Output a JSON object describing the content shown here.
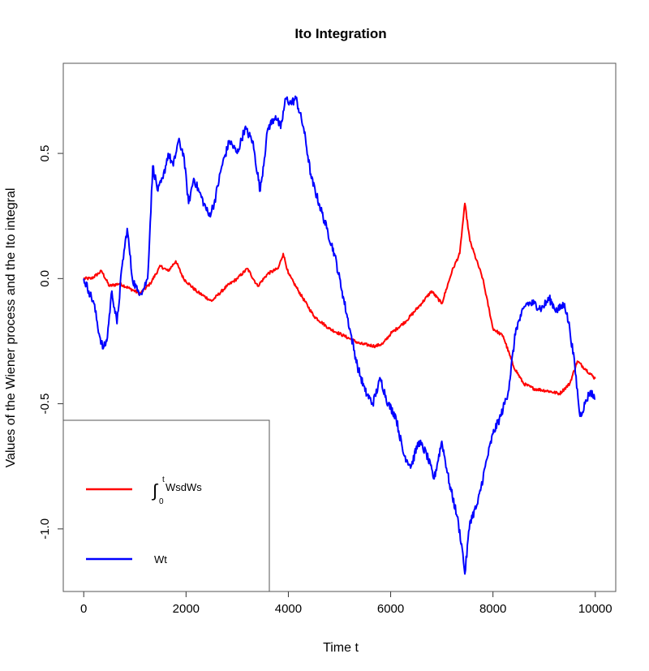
{
  "chart_data": {
    "type": "line",
    "title": "Ito Integration",
    "xlabel": "Time t",
    "ylabel": "Values of the Wiener process and the Ito integral",
    "xlim": [
      -400,
      10400
    ],
    "ylim": [
      -1.25,
      0.86
    ],
    "x_ticks": [
      0,
      2000,
      4000,
      6000,
      8000,
      10000
    ],
    "y_ticks": [
      -1.0,
      -0.5,
      0.0,
      0.5
    ],
    "x_tick_labels": [
      "0",
      "2000",
      "4000",
      "6000",
      "8000",
      "10000"
    ],
    "y_tick_labels": [
      "-1.0",
      "-0.5",
      "0.0",
      "0.5"
    ],
    "legend_position": "bottom-left",
    "series": [
      {
        "name": "∫₀ᵗ WsdWs",
        "color": "#ff0000",
        "x": [
          0,
          150,
          350,
          500,
          700,
          900,
          1100,
          1300,
          1500,
          1650,
          1800,
          1950,
          2200,
          2500,
          2800,
          3000,
          3200,
          3400,
          3600,
          3800,
          3900,
          4000,
          4200,
          4500,
          4800,
          5100,
          5400,
          5700,
          5850,
          6000,
          6300,
          6600,
          6800,
          7000,
          7200,
          7350,
          7450,
          7550,
          7800,
          8000,
          8200,
          8400,
          8600,
          8800,
          9100,
          9300,
          9500,
          9650,
          9800,
          10000
        ],
        "y": [
          0.0,
          0.0,
          0.03,
          -0.03,
          -0.02,
          -0.04,
          -0.06,
          -0.02,
          0.05,
          0.03,
          0.07,
          0.0,
          -0.05,
          -0.09,
          -0.03,
          0.0,
          0.04,
          -0.03,
          0.02,
          0.04,
          0.1,
          0.02,
          -0.05,
          -0.15,
          -0.2,
          -0.23,
          -0.26,
          -0.27,
          -0.26,
          -0.22,
          -0.17,
          -0.1,
          -0.05,
          -0.1,
          0.03,
          0.1,
          0.3,
          0.15,
          0.0,
          -0.2,
          -0.23,
          -0.35,
          -0.42,
          -0.44,
          -0.45,
          -0.46,
          -0.42,
          -0.33,
          -0.36,
          -0.4
        ]
      },
      {
        "name": "Wt",
        "color": "#0000ff",
        "x": [
          0,
          100,
          200,
          300,
          380,
          450,
          550,
          650,
          750,
          850,
          950,
          1050,
          1150,
          1250,
          1350,
          1450,
          1550,
          1650,
          1750,
          1850,
          1950,
          2050,
          2150,
          2250,
          2350,
          2450,
          2550,
          2700,
          2850,
          3000,
          3150,
          3300,
          3450,
          3600,
          3750,
          3850,
          3950,
          4050,
          4150,
          4300,
          4450,
          4600,
          4750,
          4900,
          5050,
          5200,
          5350,
          5500,
          5650,
          5800,
          5950,
          6100,
          6250,
          6400,
          6550,
          6700,
          6850,
          7000,
          7150,
          7300,
          7400,
          7450,
          7550,
          7700,
          7850,
          8000,
          8150,
          8300,
          8450,
          8550,
          8650,
          8800,
          8950,
          9100,
          9250,
          9400,
          9500,
          9600,
          9700,
          9800,
          9900,
          10000
        ],
        "y": [
          0.0,
          -0.05,
          -0.1,
          -0.22,
          -0.28,
          -0.25,
          -0.05,
          -0.18,
          0.05,
          0.2,
          0.0,
          -0.05,
          -0.05,
          0.0,
          0.45,
          0.35,
          0.4,
          0.5,
          0.45,
          0.55,
          0.5,
          0.3,
          0.4,
          0.35,
          0.3,
          0.25,
          0.3,
          0.45,
          0.55,
          0.5,
          0.6,
          0.55,
          0.35,
          0.6,
          0.65,
          0.6,
          0.72,
          0.7,
          0.72,
          0.6,
          0.4,
          0.3,
          0.2,
          0.1,
          -0.05,
          -0.2,
          -0.35,
          -0.45,
          -0.5,
          -0.4,
          -0.5,
          -0.55,
          -0.7,
          -0.75,
          -0.65,
          -0.7,
          -0.8,
          -0.65,
          -0.82,
          -0.95,
          -1.08,
          -1.18,
          -0.97,
          -0.9,
          -0.75,
          -0.62,
          -0.55,
          -0.45,
          -0.2,
          -0.15,
          -0.1,
          -0.1,
          -0.12,
          -0.08,
          -0.13,
          -0.1,
          -0.2,
          -0.35,
          -0.55,
          -0.5,
          -0.45,
          -0.48
        ]
      }
    ]
  },
  "legend": {
    "integral_prefix": "∫",
    "integral_upper": "t",
    "integral_lower": "0",
    "integral_body": "WsdWs",
    "wt_label": "Wt"
  }
}
